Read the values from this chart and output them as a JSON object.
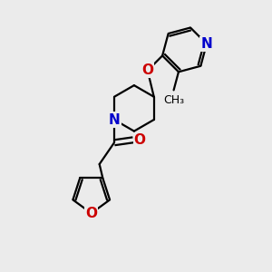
{
  "bg_color": "#ebebeb",
  "bond_color": "#000000",
  "N_color": "#0000cc",
  "O_color": "#cc0000",
  "line_width": 1.6,
  "font_size": 11,
  "fig_size": [
    3.0,
    3.0
  ],
  "dpi": 100,
  "xlim": [
    0,
    10
  ],
  "ylim": [
    0,
    10
  ]
}
